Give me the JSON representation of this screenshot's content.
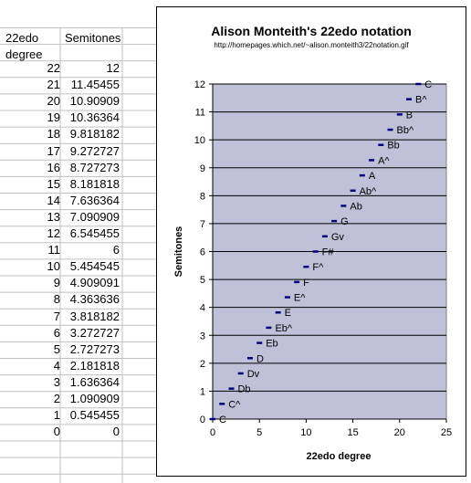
{
  "sheet": {
    "header_col1_line1": "22edo",
    "header_col1_line2": "degree",
    "header_col2": "Semitones",
    "rows": [
      {
        "deg": "22",
        "semi": "12"
      },
      {
        "deg": "21",
        "semi": "11.45455"
      },
      {
        "deg": "20",
        "semi": "10.90909"
      },
      {
        "deg": "19",
        "semi": "10.36364"
      },
      {
        "deg": "18",
        "semi": "9.818182"
      },
      {
        "deg": "17",
        "semi": "9.272727"
      },
      {
        "deg": "16",
        "semi": "8.727273"
      },
      {
        "deg": "15",
        "semi": "8.181818"
      },
      {
        "deg": "14",
        "semi": "7.636364"
      },
      {
        "deg": "13",
        "semi": "7.090909"
      },
      {
        "deg": "12",
        "semi": "6.545455"
      },
      {
        "deg": "11",
        "semi": "6"
      },
      {
        "deg": "10",
        "semi": "5.454545"
      },
      {
        "deg": "9",
        "semi": "4.909091"
      },
      {
        "deg": "8",
        "semi": "4.363636"
      },
      {
        "deg": "7",
        "semi": "3.818182"
      },
      {
        "deg": "6",
        "semi": "3.272727"
      },
      {
        "deg": "5",
        "semi": "2.727273"
      },
      {
        "deg": "4",
        "semi": "2.181818"
      },
      {
        "deg": "3",
        "semi": "1.636364"
      },
      {
        "deg": "2",
        "semi": "1.090909"
      },
      {
        "deg": "1",
        "semi": "0.545455"
      },
      {
        "deg": "0",
        "semi": "0"
      }
    ]
  },
  "colors": {
    "plot_area": "#c0c0d8",
    "marker": "#000080",
    "gridline": "#000000",
    "cell_border": "#c0c0c0"
  },
  "chart_data": {
    "type": "scatter",
    "title": "Alison Monteith's 22edo notation",
    "subtitle": "http://homepages.which.net/~alison.monteith3/22notation.gif",
    "xlabel": "22edo degree",
    "ylabel": "Semitones",
    "xlim": [
      0,
      25
    ],
    "ylim": [
      0,
      12
    ],
    "xticks": [
      "0",
      "5",
      "10",
      "15",
      "20",
      "25"
    ],
    "yticks": [
      "0",
      "1",
      "2",
      "3",
      "4",
      "5",
      "6",
      "7",
      "8",
      "9",
      "10",
      "11",
      "12"
    ],
    "grid": "horizontal",
    "marker": "dash",
    "points": [
      {
        "x": 0,
        "y": 0,
        "label": "C"
      },
      {
        "x": 1,
        "y": 0.545455,
        "label": "C^"
      },
      {
        "x": 2,
        "y": 1.090909,
        "label": "Db"
      },
      {
        "x": 3,
        "y": 1.636364,
        "label": "Dv"
      },
      {
        "x": 4,
        "y": 2.181818,
        "label": "D"
      },
      {
        "x": 5,
        "y": 2.727273,
        "label": "Eb"
      },
      {
        "x": 6,
        "y": 3.272727,
        "label": "Eb^"
      },
      {
        "x": 7,
        "y": 3.818182,
        "label": "E"
      },
      {
        "x": 8,
        "y": 4.363636,
        "label": "E^"
      },
      {
        "x": 9,
        "y": 4.909091,
        "label": "F"
      },
      {
        "x": 10,
        "y": 5.454545,
        "label": "F^"
      },
      {
        "x": 11,
        "y": 6,
        "label": "F#"
      },
      {
        "x": 12,
        "y": 6.545455,
        "label": "Gv"
      },
      {
        "x": 13,
        "y": 7.090909,
        "label": "G"
      },
      {
        "x": 14,
        "y": 7.636364,
        "label": "Ab"
      },
      {
        "x": 15,
        "y": 8.181818,
        "label": "Ab^"
      },
      {
        "x": 16,
        "y": 8.727273,
        "label": "A"
      },
      {
        "x": 17,
        "y": 9.272727,
        "label": "A^"
      },
      {
        "x": 18,
        "y": 9.818182,
        "label": "Bb"
      },
      {
        "x": 19,
        "y": 10.363636,
        "label": "Bb^"
      },
      {
        "x": 20,
        "y": 10.909091,
        "label": "B"
      },
      {
        "x": 21,
        "y": 11.454545,
        "label": "B^"
      },
      {
        "x": 22,
        "y": 12,
        "label": "C"
      }
    ]
  }
}
